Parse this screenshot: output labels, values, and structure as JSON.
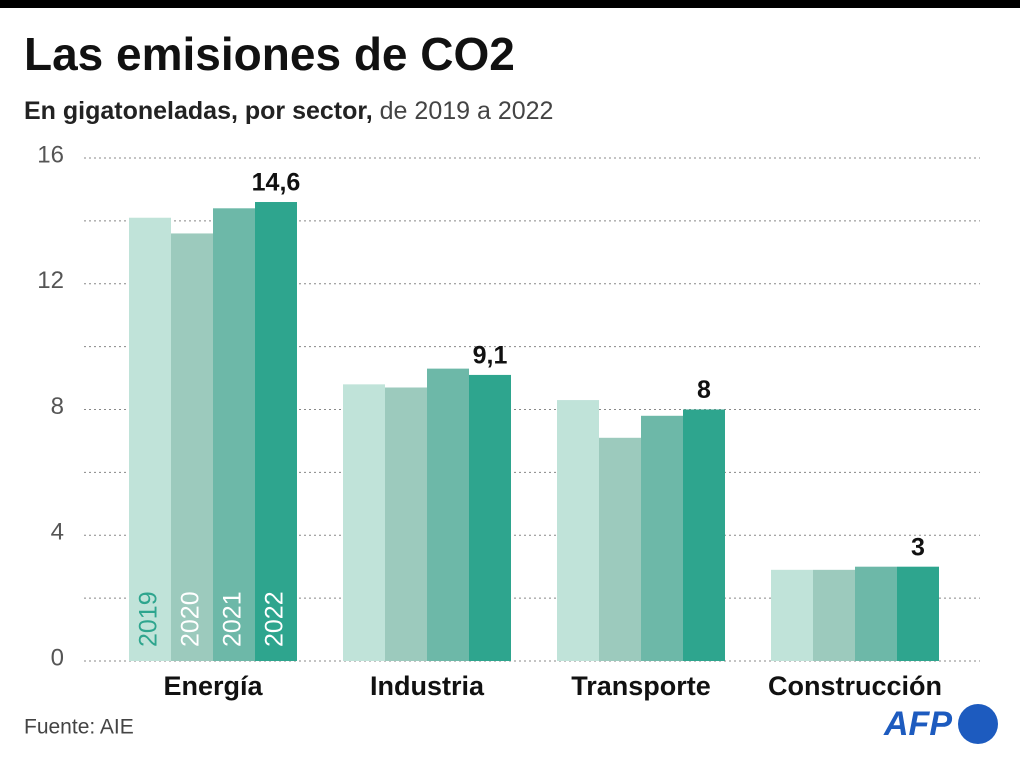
{
  "chart_data": {
    "type": "bar",
    "title": "Las emisiones de CO2",
    "subtitle": "En gigatoneladas, por sector,",
    "subtitle_detail": "de 2019 a 2022",
    "categories": [
      "Energía",
      "Industria",
      "Transporte",
      "Construcción"
    ],
    "series": [
      {
        "name": "2019",
        "color": "#c0e3d9",
        "values": [
          14.1,
          8.8,
          8.3,
          2.9
        ]
      },
      {
        "name": "2020",
        "color": "#9ccabd",
        "values": [
          13.6,
          8.7,
          7.1,
          2.9
        ]
      },
      {
        "name": "2021",
        "color": "#6db8a8",
        "values": [
          14.4,
          9.3,
          7.8,
          3.0
        ]
      },
      {
        "name": "2022",
        "color": "#2ea58e",
        "values": [
          14.6,
          9.1,
          8,
          3
        ],
        "value_labels": [
          "14,6",
          "9,1",
          "8",
          "3"
        ]
      }
    ],
    "ylim": [
      0,
      16
    ],
    "yticks": [
      0,
      4,
      8,
      12,
      16
    ],
    "yticks_minor": [
      2,
      6,
      10,
      14
    ],
    "grid": true,
    "source": "Fuente: AIE",
    "logo": "AFP"
  }
}
